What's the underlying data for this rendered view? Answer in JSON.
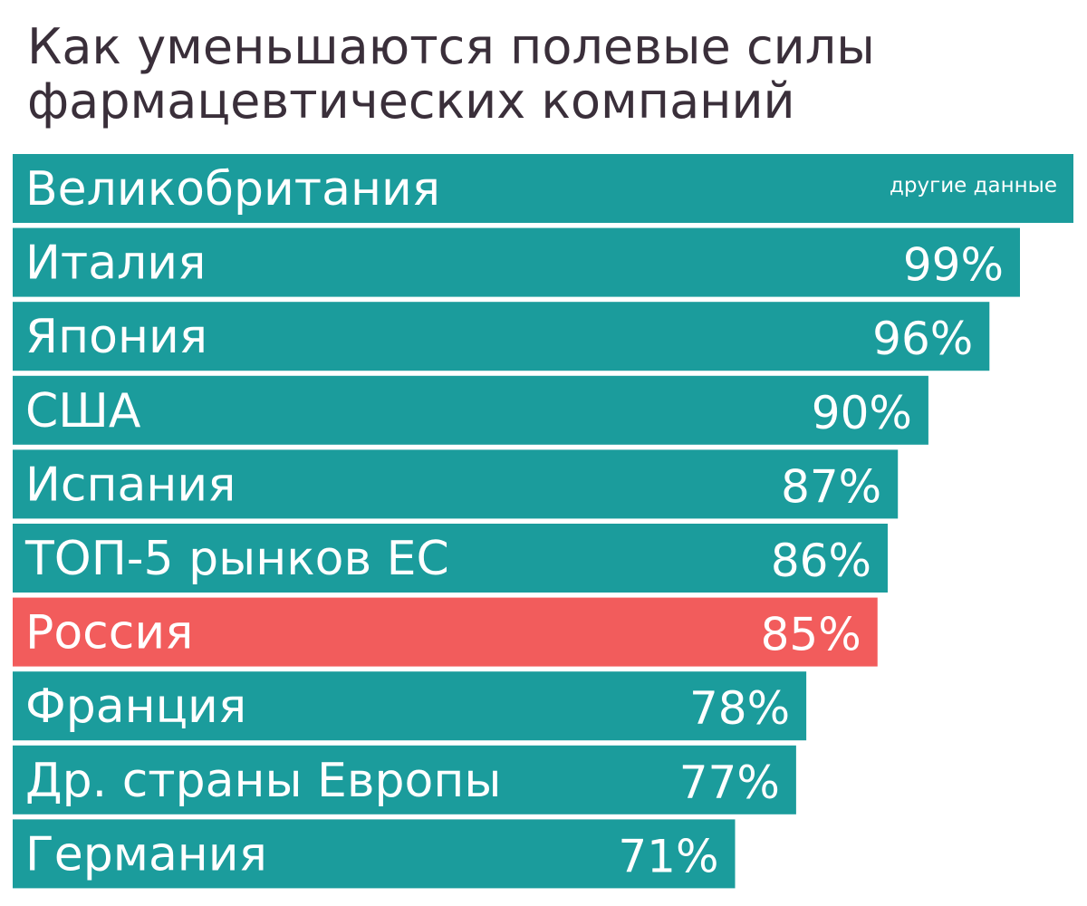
{
  "title": "Как уменьшаются полевые силы фармацевтических компаний",
  "colors": {
    "bar": "#1b9c9c",
    "highlight": "#f25c5c"
  },
  "chart_data": {
    "type": "bar",
    "orientation": "horizontal",
    "categories": [
      "Великобритания",
      "Италия",
      "Япония",
      "США",
      "Испания",
      "ТОП-5 рынков ЕС",
      "Россия",
      "Франция",
      "Др. страны Европы",
      "Германия"
    ],
    "values": [
      null,
      99,
      96,
      90,
      87,
      86,
      85,
      78,
      77,
      71
    ],
    "value_labels": [
      "",
      "99%",
      "96%",
      "90%",
      "87%",
      "86%",
      "85%",
      "78%",
      "77%",
      "71%"
    ],
    "notes": [
      "другие данные",
      "",
      "",
      "",
      "",
      "",
      "",
      "",
      "",
      ""
    ],
    "highlight": "Россия",
    "xlim": [
      0,
      100
    ],
    "grid": false,
    "legend": "none"
  }
}
